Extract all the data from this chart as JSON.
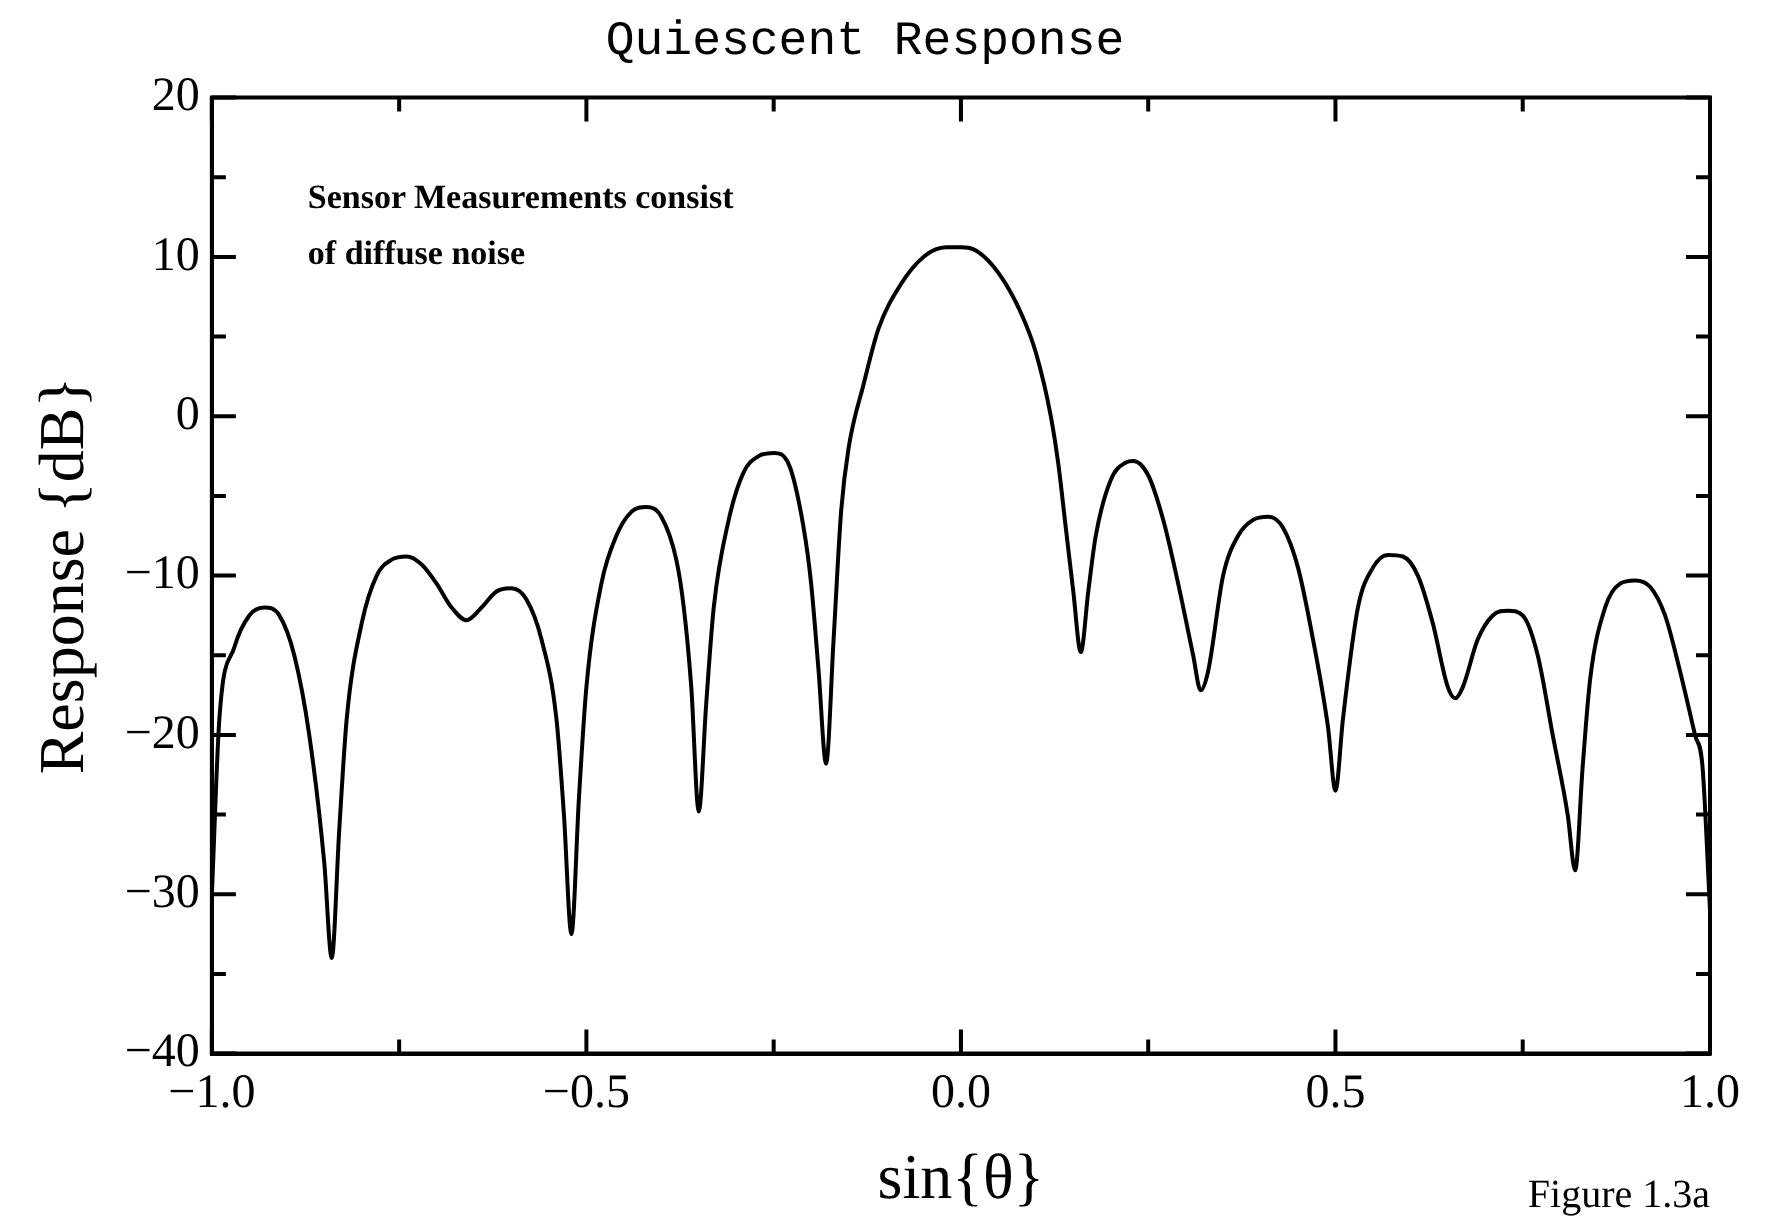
{
  "chart_data": {
    "type": "line",
    "title": "Quiescent Response",
    "xlabel": "sin{θ}",
    "ylabel": "Response {dB}",
    "annotations": [
      "Sensor Measurements consist\nof diffuse noise",
      "Figure 1.3a"
    ],
    "xlim": [
      -1.0,
      1.0
    ],
    "ylim": [
      -40,
      20
    ],
    "xticks": [
      {
        "value": -1.0,
        "label": "−1.0"
      },
      {
        "value": -0.75,
        "label": null
      },
      {
        "value": -0.5,
        "label": "−0.5"
      },
      {
        "value": -0.25,
        "label": null
      },
      {
        "value": 0,
        "label": "0.0"
      },
      {
        "value": 0.25,
        "label": null
      },
      {
        "value": 0.5,
        "label": "0.5"
      },
      {
        "value": 0.75,
        "label": null
      },
      {
        "value": 1.0,
        "label": "1.0"
      }
    ],
    "yticks": [
      {
        "value": -40,
        "label": "−40"
      },
      {
        "value": -35,
        "label": null
      },
      {
        "value": -30,
        "label": "−30"
      },
      {
        "value": -25,
        "label": null
      },
      {
        "value": -20,
        "label": "−20"
      },
      {
        "value": -15,
        "label": null
      },
      {
        "value": -10,
        "label": "−10"
      },
      {
        "value": -5,
        "label": null
      },
      0,
      {
        "value": 5,
        "label": null
      },
      10,
      {
        "value": 15,
        "label": null
      },
      20
    ],
    "grid": false,
    "legend": false,
    "marker": "none",
    "line_style": "solid",
    "series": [
      {
        "color": "#000000",
        "x": [
          -1.0,
          -0.99,
          -0.97,
          -0.95,
          -0.93,
          -0.91,
          -0.89,
          -0.87,
          -0.85,
          -0.84,
          -0.83,
          -0.82,
          -0.8,
          -0.78,
          -0.76,
          -0.74,
          -0.72,
          -0.7,
          -0.68,
          -0.66,
          -0.64,
          -0.62,
          -0.6,
          -0.58,
          -0.56,
          -0.54,
          -0.53,
          -0.52,
          -0.51,
          -0.5,
          -0.48,
          -0.46,
          -0.44,
          -0.42,
          -0.4,
          -0.38,
          -0.37,
          -0.36,
          -0.35,
          -0.34,
          -0.33,
          -0.31,
          -0.29,
          -0.27,
          -0.25,
          -0.23,
          -0.21,
          -0.2,
          -0.19,
          -0.18,
          -0.17,
          -0.16,
          -0.15,
          -0.13,
          -0.11,
          -0.08,
          -0.05,
          -0.02,
          0,
          0.02,
          0.05,
          0.08,
          0.1,
          0.12,
          0.13,
          0.14,
          0.15,
          0.16,
          0.17,
          0.18,
          0.2,
          0.22,
          0.23,
          0.25,
          0.27,
          0.29,
          0.31,
          0.32,
          0.33,
          0.35,
          0.37,
          0.39,
          0.41,
          0.43,
          0.45,
          0.47,
          0.49,
          0.5,
          0.51,
          0.53,
          0.55,
          0.57,
          0.59,
          0.61,
          0.63,
          0.65,
          0.66,
          0.67,
          0.69,
          0.71,
          0.73,
          0.75,
          0.77,
          0.79,
          0.81,
          0.82,
          0.83,
          0.84,
          0.86,
          0.88,
          0.9,
          0.92,
          0.94,
          0.96,
          0.98,
          0.99,
          1.0
        ],
        "values": [
          -30,
          -19,
          -14.5,
          -12.5,
          -12,
          -12.5,
          -15,
          -20,
          -28,
          -34,
          -26,
          -19,
          -13,
          -10,
          -9,
          -8.8,
          -9.3,
          -10.5,
          -12,
          -12.8,
          -12,
          -11,
          -10.8,
          -11.5,
          -14,
          -19,
          -25,
          -32.5,
          -24,
          -17,
          -10.5,
          -7.5,
          -6,
          -5.7,
          -6.3,
          -9,
          -12,
          -17,
          -24.8,
          -18,
          -12,
          -6.5,
          -3.5,
          -2.5,
          -2.3,
          -3,
          -7,
          -10.5,
          -16,
          -21.8,
          -14,
          -6,
          -2,
          2,
          5.5,
          8.3,
          10,
          10.6,
          10.6,
          10.4,
          9,
          6.5,
          4,
          0,
          -3,
          -7,
          -11,
          -14.8,
          -11,
          -7.5,
          -4,
          -2.9,
          -2.8,
          -3.7,
          -6.5,
          -10.5,
          -15,
          -17.2,
          -16,
          -10,
          -7.5,
          -6.5,
          -6.3,
          -7,
          -9.5,
          -14,
          -19.5,
          -23.5,
          -19,
          -12,
          -9.5,
          -8.7,
          -8.8,
          -10,
          -13,
          -17,
          -17.7,
          -17,
          -14,
          -12.5,
          -12.2,
          -12.5,
          -15,
          -20,
          -25,
          -28.5,
          -22,
          -16.5,
          -12,
          -10.5,
          -10.3,
          -10.7,
          -12.5,
          -16,
          -20,
          -22,
          -31
        ]
      }
    ]
  }
}
